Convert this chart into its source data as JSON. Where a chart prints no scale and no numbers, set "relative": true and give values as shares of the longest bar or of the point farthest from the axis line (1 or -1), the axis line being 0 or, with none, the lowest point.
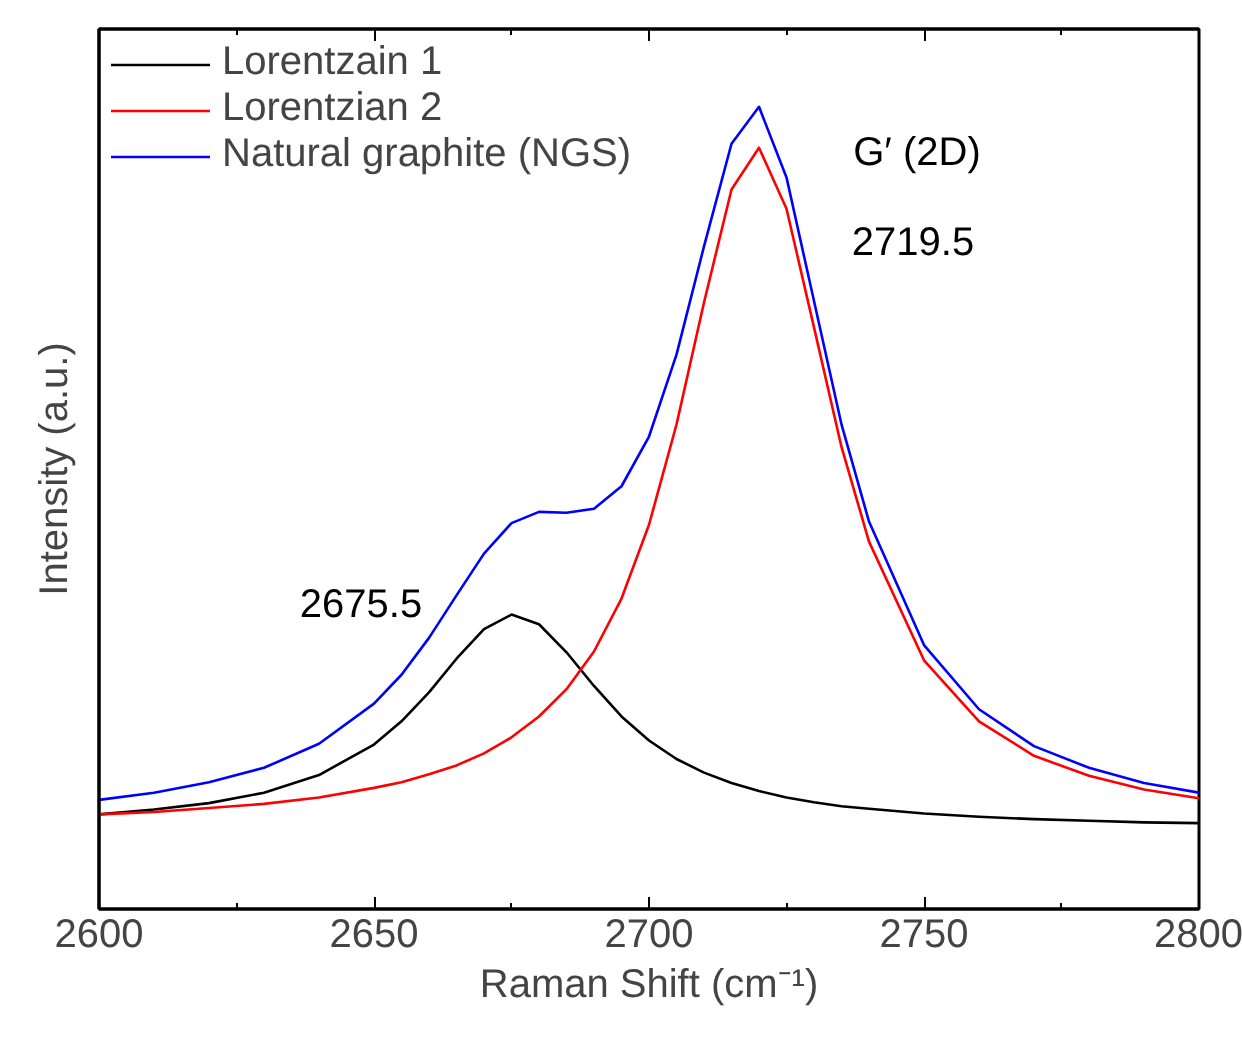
{
  "chart_data": {
    "type": "line",
    "relative": true,
    "xlabel": "Raman Shift (cm⁻¹)",
    "ylabel": "Intensity (a.u.)",
    "x": [
      2600,
      2610,
      2620,
      2630,
      2640,
      2650,
      2655,
      2660,
      2665,
      2670,
      2675,
      2680,
      2685,
      2690,
      2695,
      2700,
      2705,
      2710,
      2715,
      2720,
      2725,
      2730,
      2735,
      2740,
      2750,
      2760,
      2770,
      2780,
      2790,
      2800
    ],
    "xlim": [
      2600,
      2800
    ],
    "xticks": [
      2600,
      {
        "value": 2625,
        "label": null
      },
      2650,
      {
        "value": 2675,
        "label": null
      },
      2700,
      {
        "value": 2725,
        "label": null
      },
      2750,
      {
        "value": 2775,
        "label": null
      },
      2800
    ],
    "series": [
      {
        "name": "Lorentzain 1",
        "color": "#000000",
        "values": [
          0.118,
          0.124,
          0.132,
          0.145,
          0.167,
          0.205,
          0.234,
          0.27,
          0.312,
          0.349,
          0.367,
          0.355,
          0.32,
          0.278,
          0.24,
          0.21,
          0.187,
          0.17,
          0.157,
          0.147,
          0.139,
          0.133,
          0.128,
          0.125,
          0.119,
          0.115,
          0.112,
          0.11,
          0.108,
          0.107
        ]
      },
      {
        "name": "Lorentzian 2",
        "color": "#ff0000",
        "values": [
          0.118,
          0.121,
          0.126,
          0.131,
          0.139,
          0.151,
          0.158,
          0.168,
          0.179,
          0.194,
          0.214,
          0.24,
          0.274,
          0.321,
          0.387,
          0.479,
          0.604,
          0.756,
          0.897,
          0.949,
          0.873,
          0.725,
          0.576,
          0.458,
          0.31,
          0.234,
          0.191,
          0.166,
          0.149,
          0.138
        ]
      },
      {
        "name": "Natural graphite (NGS)",
        "color": "#0000ff",
        "values": [
          0.136,
          0.145,
          0.158,
          0.176,
          0.206,
          0.256,
          0.292,
          0.338,
          0.391,
          0.443,
          0.481,
          0.495,
          0.494,
          0.499,
          0.527,
          0.589,
          0.691,
          0.826,
          0.954,
          1.0,
          0.912,
          0.758,
          0.604,
          0.483,
          0.329,
          0.249,
          0.203,
          0.176,
          0.157,
          0.145
        ]
      }
    ],
    "annotations": [
      "2675.5",
      "G′ (2D)",
      "2719.5"
    ],
    "legend": "top left",
    "grid": false,
    "marker": "none",
    "line_style": "solid"
  }
}
